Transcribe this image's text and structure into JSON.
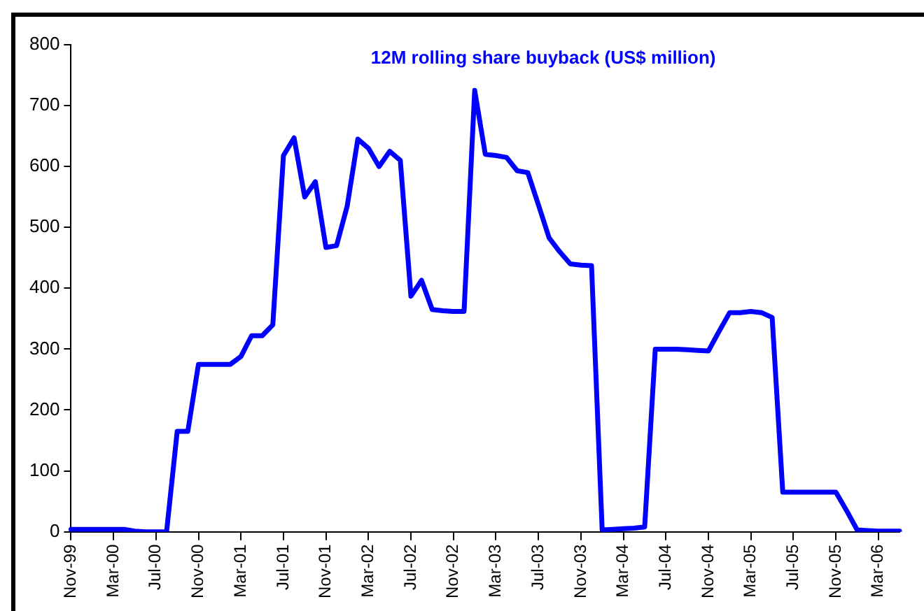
{
  "chart_data": {
    "type": "line",
    "title": "12M rolling share buyback (US$ million)",
    "categories": [
      "Nov-99",
      null,
      null,
      null,
      "Mar-00",
      null,
      null,
      null,
      "Jul-00",
      null,
      null,
      null,
      "Nov-00",
      null,
      null,
      null,
      "Mar-01",
      null,
      null,
      null,
      "Jul-01",
      null,
      null,
      null,
      "Nov-01",
      null,
      null,
      null,
      "Mar-02",
      null,
      null,
      null,
      "Jul-02",
      null,
      null,
      null,
      "Nov-02",
      null,
      null,
      null,
      "Mar-03",
      null,
      null,
      null,
      "Jul-03",
      null,
      null,
      null,
      "Nov-03",
      null,
      null,
      null,
      "Mar-04",
      null,
      null,
      null,
      "Jul-04",
      null,
      null,
      null,
      "Nov-04",
      null,
      null,
      null,
      "Mar-05",
      null,
      null,
      null,
      "Jul-05",
      null,
      null,
      null,
      "Nov-05",
      null,
      null,
      null,
      "Mar-06",
      null,
      null
    ],
    "series": [
      {
        "color": "#0000ff",
        "values": [
          4,
          4,
          4,
          4,
          4,
          4,
          1,
          0,
          0,
          0,
          165,
          165,
          275,
          275,
          275,
          275,
          288,
          322,
          322,
          340,
          618,
          647,
          550,
          575,
          467,
          470,
          535,
          645,
          630,
          600,
          625,
          610,
          387,
          413,
          365,
          363,
          362,
          362,
          725,
          620,
          618,
          615,
          593,
          590,
          537,
          483,
          460,
          440,
          438,
          437,
          3,
          4,
          5,
          6,
          8,
          300,
          300,
          300,
          299,
          298,
          297,
          329,
          360,
          360,
          362,
          360,
          352,
          65,
          65,
          65,
          65,
          65,
          65,
          35,
          3,
          2,
          1,
          1,
          1
        ]
      }
    ],
    "ylim": [
      0,
      800
    ],
    "yticks": [
      0,
      100,
      200,
      300,
      400,
      500,
      600,
      700,
      800
    ],
    "grid": false,
    "legend": false,
    "marker": "none",
    "line_style": "solid"
  }
}
